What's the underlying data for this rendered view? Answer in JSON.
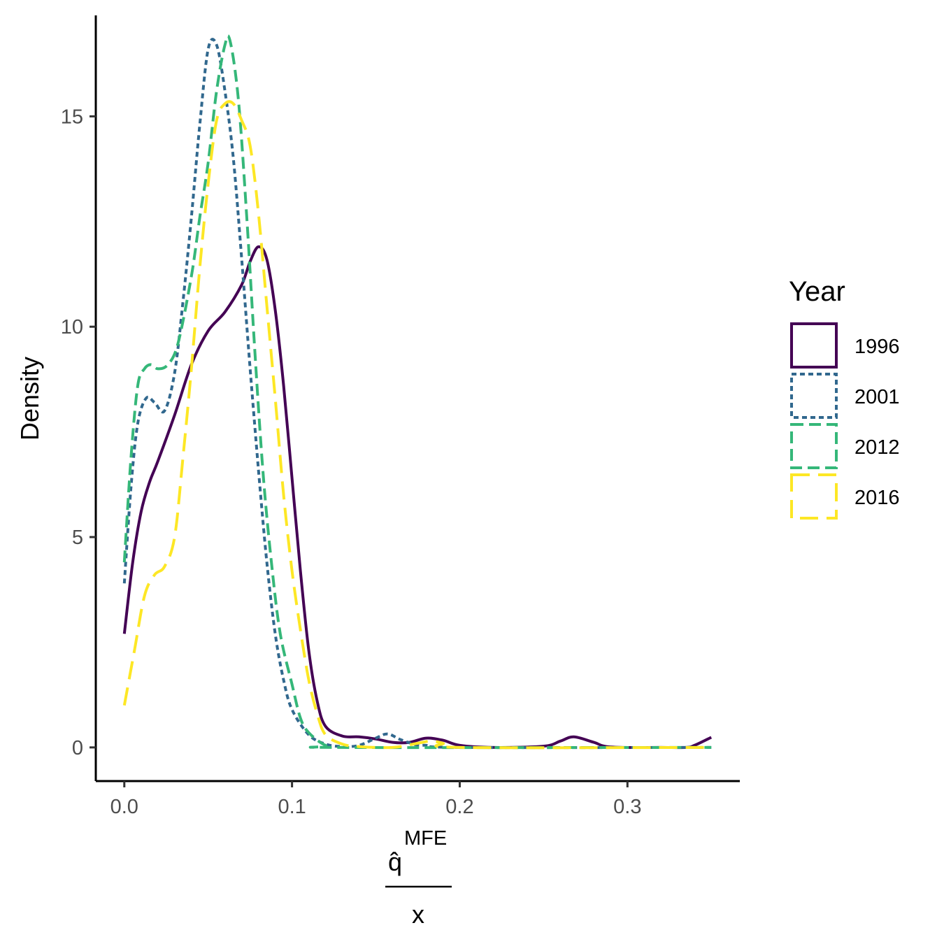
{
  "chart_data": {
    "type": "line",
    "subtype": "density",
    "xlabel": {
      "numerator": "q̂",
      "superscript": "MFE",
      "denominator": "x"
    },
    "ylabel": "Density",
    "xlim": [
      -0.017,
      0.367
    ],
    "ylim": [
      -0.8,
      17.4
    ],
    "x_ticks": [
      0.0,
      0.1,
      0.2,
      0.3
    ],
    "x_tick_labels": [
      "0.0",
      "0.1",
      "0.2",
      "0.3"
    ],
    "y_ticks": [
      0,
      5,
      10,
      15
    ],
    "y_tick_labels": [
      "0",
      "5",
      "10",
      "15"
    ],
    "grid": false,
    "legend": {
      "title": "Year",
      "position": "right",
      "entries": [
        "1996",
        "2001",
        "2012",
        "2016"
      ]
    },
    "series": [
      {
        "name": "1996",
        "color": "#440154",
        "dash": "solid",
        "points": [
          [
            0.0,
            2.7
          ],
          [
            0.005,
            4.4
          ],
          [
            0.01,
            5.6
          ],
          [
            0.015,
            6.3
          ],
          [
            0.02,
            6.8
          ],
          [
            0.03,
            7.9
          ],
          [
            0.04,
            9.1
          ],
          [
            0.05,
            9.9
          ],
          [
            0.06,
            10.35
          ],
          [
            0.07,
            11.0
          ],
          [
            0.075,
            11.55
          ],
          [
            0.08,
            11.9
          ],
          [
            0.085,
            11.6
          ],
          [
            0.09,
            10.4
          ],
          [
            0.095,
            8.6
          ],
          [
            0.1,
            6.4
          ],
          [
            0.105,
            4.2
          ],
          [
            0.11,
            2.3
          ],
          [
            0.115,
            1.1
          ],
          [
            0.12,
            0.5
          ],
          [
            0.13,
            0.27
          ],
          [
            0.14,
            0.25
          ],
          [
            0.15,
            0.2
          ],
          [
            0.16,
            0.12
          ],
          [
            0.17,
            0.12
          ],
          [
            0.18,
            0.22
          ],
          [
            0.19,
            0.17
          ],
          [
            0.2,
            0.05
          ],
          [
            0.22,
            0.0
          ],
          [
            0.25,
            0.03
          ],
          [
            0.26,
            0.15
          ],
          [
            0.268,
            0.25
          ],
          [
            0.28,
            0.12
          ],
          [
            0.29,
            0.01
          ],
          [
            0.32,
            0.0
          ],
          [
            0.335,
            0.0
          ],
          [
            0.34,
            0.05
          ],
          [
            0.35,
            0.24
          ]
        ]
      },
      {
        "name": "2001",
        "color": "#31688e",
        "dash": "dotted",
        "points": [
          [
            0.0,
            3.9
          ],
          [
            0.004,
            6.2
          ],
          [
            0.008,
            7.7
          ],
          [
            0.013,
            8.3
          ],
          [
            0.018,
            8.2
          ],
          [
            0.024,
            8.0
          ],
          [
            0.03,
            8.9
          ],
          [
            0.035,
            10.6
          ],
          [
            0.04,
            12.6
          ],
          [
            0.045,
            14.8
          ],
          [
            0.05,
            16.6
          ],
          [
            0.055,
            16.7
          ],
          [
            0.06,
            15.6
          ],
          [
            0.065,
            14.0
          ],
          [
            0.07,
            11.6
          ],
          [
            0.075,
            9.0
          ],
          [
            0.08,
            6.6
          ],
          [
            0.085,
            4.4
          ],
          [
            0.09,
            2.7
          ],
          [
            0.095,
            1.6
          ],
          [
            0.1,
            0.9
          ],
          [
            0.11,
            0.3
          ],
          [
            0.12,
            0.08
          ],
          [
            0.13,
            0.02
          ],
          [
            0.14,
            0.05
          ],
          [
            0.15,
            0.22
          ],
          [
            0.157,
            0.32
          ],
          [
            0.165,
            0.18
          ],
          [
            0.175,
            0.05
          ],
          [
            0.18,
            0.05
          ],
          [
            0.2,
            0.0
          ],
          [
            0.35,
            0.0
          ]
        ]
      },
      {
        "name": "2012",
        "color": "#35b779",
        "dash": "dashed",
        "points": [
          [
            0.0,
            4.4
          ],
          [
            0.004,
            6.9
          ],
          [
            0.008,
            8.6
          ],
          [
            0.012,
            9.0
          ],
          [
            0.016,
            9.1
          ],
          [
            0.02,
            9.0
          ],
          [
            0.026,
            9.1
          ],
          [
            0.032,
            9.6
          ],
          [
            0.04,
            11.2
          ],
          [
            0.045,
            12.6
          ],
          [
            0.05,
            13.9
          ],
          [
            0.055,
            15.6
          ],
          [
            0.06,
            16.7
          ],
          [
            0.063,
            16.8
          ],
          [
            0.068,
            15.4
          ],
          [
            0.073,
            12.6
          ],
          [
            0.078,
            9.3
          ],
          [
            0.083,
            6.4
          ],
          [
            0.088,
            4.3
          ],
          [
            0.093,
            2.7
          ],
          [
            0.1,
            1.5
          ],
          [
            0.105,
            0.7
          ],
          [
            0.11,
            0.35
          ],
          [
            0.12,
            0.05
          ],
          [
            0.13,
            0.0
          ],
          [
            0.35,
            0.0
          ]
        ]
      },
      {
        "name": "2016",
        "color": "#fde725",
        "dash": "longdash",
        "points": [
          [
            0.0,
            1.0
          ],
          [
            0.006,
            2.3
          ],
          [
            0.012,
            3.6
          ],
          [
            0.018,
            4.1
          ],
          [
            0.024,
            4.3
          ],
          [
            0.03,
            5.0
          ],
          [
            0.035,
            6.9
          ],
          [
            0.04,
            9.0
          ],
          [
            0.045,
            11.4
          ],
          [
            0.05,
            13.4
          ],
          [
            0.055,
            14.9
          ],
          [
            0.06,
            15.3
          ],
          [
            0.065,
            15.3
          ],
          [
            0.07,
            14.9
          ],
          [
            0.075,
            14.3
          ],
          [
            0.08,
            12.7
          ],
          [
            0.085,
            10.5
          ],
          [
            0.09,
            8.3
          ],
          [
            0.095,
            6.0
          ],
          [
            0.1,
            4.2
          ],
          [
            0.105,
            2.8
          ],
          [
            0.11,
            1.6
          ],
          [
            0.115,
            0.8
          ],
          [
            0.12,
            0.3
          ],
          [
            0.13,
            0.08
          ],
          [
            0.14,
            0.02
          ],
          [
            0.16,
            0.0
          ],
          [
            0.175,
            0.1
          ],
          [
            0.183,
            0.15
          ],
          [
            0.19,
            0.1
          ],
          [
            0.2,
            0.0
          ],
          [
            0.35,
            0.0
          ]
        ]
      }
    ]
  }
}
